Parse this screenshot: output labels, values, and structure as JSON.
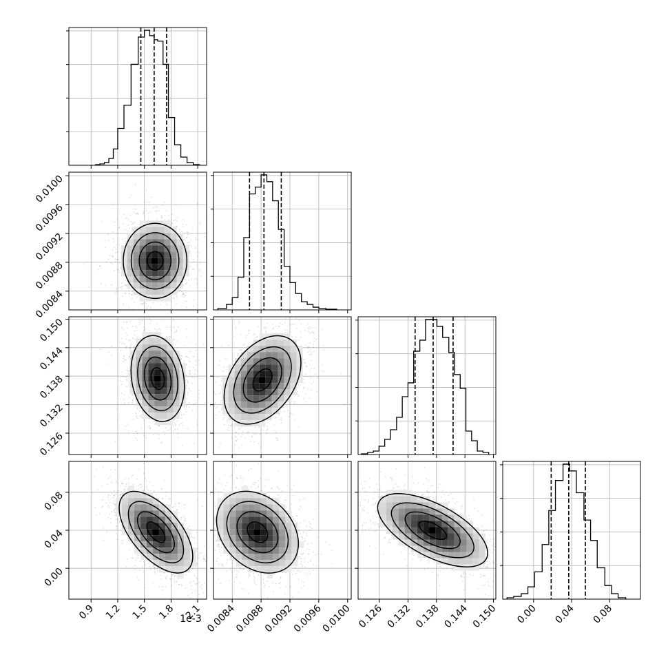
{
  "figure": {
    "type": "corner-plot",
    "offset_text": "1e-3",
    "colors": {
      "hist": "#000000",
      "grid": "#b0b0b0",
      "scatter": "#000000",
      "axes": "#000000",
      "background": "#ffffff"
    }
  },
  "chart_data": [
    {
      "type": "histogram",
      "param": 0,
      "xlim": [
        0.65,
        2.2
      ],
      "quantiles": [
        1.46,
        1.61,
        1.75
      ],
      "bins": [
        [
          0.95,
          1.0
        ],
        [
          1.0,
          1.05
        ],
        [
          1.05,
          1.1
        ],
        [
          1.1,
          1.15
        ],
        [
          1.15,
          1.2
        ],
        [
          1.2,
          1.27
        ],
        [
          1.27,
          1.35
        ],
        [
          1.35,
          1.43
        ],
        [
          1.43,
          1.5
        ],
        [
          1.5,
          1.56
        ],
        [
          1.56,
          1.61
        ],
        [
          1.61,
          1.65
        ],
        [
          1.65,
          1.71
        ],
        [
          1.71,
          1.77
        ],
        [
          1.77,
          1.84
        ],
        [
          1.84,
          1.91
        ],
        [
          1.91,
          1.98
        ],
        [
          1.98,
          2.05
        ],
        [
          2.05,
          2.12
        ]
      ],
      "counts": [
        0.5,
        1,
        2,
        5,
        12,
        27,
        44,
        74,
        94,
        99,
        95,
        92,
        91,
        74,
        35,
        15,
        6,
        2,
        0.5
      ],
      "xticks": [
        0.9,
        1.2,
        1.5,
        1.8,
        2.1
      ],
      "xtick_labels": [
        "0.9",
        "1.2",
        "1.5",
        "1.8",
        "2.1"
      ]
    },
    {
      "type": "histogram",
      "param": 1,
      "xlim": [
        0.00814,
        0.01005
      ],
      "quantiles": [
        0.00864,
        0.00884,
        0.00908
      ],
      "bins": [
        [
          0.0082,
          0.00832
        ],
        [
          0.00832,
          0.0084
        ],
        [
          0.0084,
          0.00848
        ],
        [
          0.00848,
          0.00856
        ],
        [
          0.00856,
          0.00864
        ],
        [
          0.00864,
          0.00872
        ],
        [
          0.00872,
          0.0088
        ],
        [
          0.0088,
          0.00888
        ],
        [
          0.00888,
          0.00896
        ],
        [
          0.00896,
          0.00904
        ],
        [
          0.00904,
          0.00912
        ],
        [
          0.00912,
          0.0092
        ],
        [
          0.0092,
          0.00928
        ],
        [
          0.00928,
          0.00936
        ],
        [
          0.00936,
          0.00944
        ],
        [
          0.00944,
          0.00952
        ],
        [
          0.00952,
          0.0096
        ],
        [
          0.0096,
          0.0097
        ],
        [
          0.0097,
          0.00985
        ]
      ],
      "counts": [
        1,
        4,
        9,
        24,
        53,
        85,
        90,
        99,
        94,
        80,
        59,
        32,
        20,
        12,
        6,
        4,
        2,
        1,
        0.5
      ],
      "xticks": [
        0.0084,
        0.0088,
        0.0092,
        0.0096,
        0.01
      ],
      "xtick_labels": [
        "0.0084",
        "0.0088",
        "0.0092",
        "0.0096",
        "0.0100"
      ]
    },
    {
      "type": "histogram",
      "param": 2,
      "xlim": [
        0.1215,
        0.1505
      ],
      "quantiles": [
        0.1335,
        0.1373,
        0.1415
      ],
      "bins": [
        [
          0.1222,
          0.1235
        ],
        [
          0.1235,
          0.1247
        ],
        [
          0.1247,
          0.1259
        ],
        [
          0.1259,
          0.1271
        ],
        [
          0.1271,
          0.1283
        ],
        [
          0.1283,
          0.1296
        ],
        [
          0.1296,
          0.1308
        ],
        [
          0.1308,
          0.132
        ],
        [
          0.132,
          0.1332
        ],
        [
          0.1332,
          0.1345
        ],
        [
          0.1345,
          0.1357
        ],
        [
          0.1357,
          0.1369
        ],
        [
          0.1369,
          0.1381
        ],
        [
          0.1381,
          0.1393
        ],
        [
          0.1393,
          0.1406
        ],
        [
          0.1406,
          0.1418
        ],
        [
          0.1418,
          0.143
        ],
        [
          0.143,
          0.1442
        ],
        [
          0.1442,
          0.1454
        ],
        [
          0.1454,
          0.1466
        ],
        [
          0.1466,
          0.1478
        ],
        [
          0.1478,
          0.149
        ]
      ],
      "counts": [
        0.5,
        1.5,
        2.5,
        6,
        11,
        18,
        27,
        42,
        52,
        75,
        83,
        98,
        98,
        93,
        85,
        74,
        58,
        48,
        17,
        10,
        2.5,
        1.5
      ],
      "xticks": [
        0.126,
        0.132,
        0.138,
        0.144,
        0.15
      ],
      "xtick_labels": [
        "0.126",
        "0.132",
        "0.138",
        "0.144",
        "0.150"
      ]
    },
    {
      "type": "histogram",
      "param": 3,
      "xlim": [
        -0.0325,
        0.1125
      ],
      "quantiles": [
        0.0185,
        0.037,
        0.0545
      ],
      "bins": [
        [
          -0.028,
          -0.021
        ],
        [
          -0.021,
          -0.013
        ],
        [
          -0.013,
          -0.006
        ],
        [
          -0.006,
          0.001
        ],
        [
          0.001,
          0.009
        ],
        [
          0.009,
          0.016
        ],
        [
          0.016,
          0.023
        ],
        [
          0.023,
          0.031
        ],
        [
          0.031,
          0.038
        ],
        [
          0.038,
          0.045
        ],
        [
          0.045,
          0.053
        ],
        [
          0.053,
          0.06
        ],
        [
          0.06,
          0.067
        ],
        [
          0.067,
          0.075
        ],
        [
          0.075,
          0.082
        ],
        [
          0.082,
          0.089
        ],
        [
          0.089,
          0.097
        ]
      ],
      "counts": [
        1,
        2,
        4,
        9,
        20,
        40,
        65,
        87,
        99,
        94,
        78,
        58,
        43,
        23,
        10,
        4,
        1
      ],
      "xticks": [
        0.0,
        0.04,
        0.08
      ],
      "xtick_labels": [
        "0.00",
        "0.04",
        "0.08"
      ]
    },
    {
      "type": "scatter+contour",
      "x_param": 0,
      "y_param": 1,
      "xlim": [
        0.65,
        2.2
      ],
      "ylim": [
        0.00814,
        0.01005
      ],
      "center": [
        1.62,
        0.00882
      ],
      "yticks": [
        0.0084,
        0.0088,
        0.0092,
        0.0096,
        0.01
      ],
      "ytick_labels": [
        "0.0084",
        "0.0088",
        "0.0092",
        "0.0096",
        "0.0100"
      ]
    },
    {
      "type": "scatter+contour",
      "x_param": 0,
      "y_param": 2,
      "xlim": [
        0.65,
        2.2
      ],
      "ylim": [
        0.1215,
        0.1505
      ],
      "center": [
        1.65,
        0.1375
      ],
      "yticks": [
        0.126,
        0.132,
        0.138,
        0.144,
        0.15
      ],
      "ytick_labels": [
        "0.126",
        "0.132",
        "0.138",
        "0.144",
        "0.150"
      ]
    },
    {
      "type": "scatter+contour",
      "x_param": 1,
      "y_param": 2,
      "xlim": [
        0.00814,
        0.01005
      ],
      "ylim": [
        0.1215,
        0.1505
      ],
      "center": [
        0.00882,
        0.1372
      ]
    },
    {
      "type": "scatter+contour",
      "x_param": 0,
      "y_param": 3,
      "xlim": [
        0.65,
        2.2
      ],
      "ylim": [
        -0.0325,
        0.1125
      ],
      "center": [
        1.63,
        0.038
      ],
      "yticks": [
        0.0,
        0.04,
        0.08
      ],
      "ytick_labels": [
        "0.00",
        "0.04",
        "0.08"
      ]
    },
    {
      "type": "scatter+contour",
      "x_param": 1,
      "y_param": 3,
      "xlim": [
        0.00814,
        0.01005
      ],
      "ylim": [
        -0.0325,
        0.1125
      ],
      "center": [
        0.00875,
        0.038
      ]
    },
    {
      "type": "scatter+contour",
      "x_param": 2,
      "y_param": 3,
      "xlim": [
        0.1215,
        0.1505
      ],
      "ylim": [
        -0.0325,
        0.1125
      ],
      "center": [
        0.1372,
        0.04
      ]
    }
  ]
}
